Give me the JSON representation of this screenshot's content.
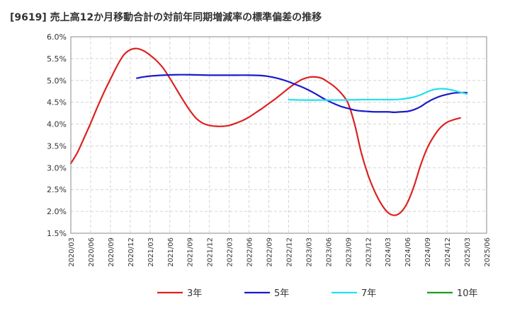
{
  "chart_data": {
    "type": "line",
    "title": "[9619]  売上高12か月移動合計の対前年同期増減率の標準偏差の推移",
    "xlabel": "",
    "ylabel": "",
    "ylim": [
      1.5,
      6.0
    ],
    "y_ticks": [
      "1.5%",
      "2.0%",
      "2.5%",
      "3.0%",
      "3.5%",
      "4.0%",
      "4.5%",
      "5.0%",
      "5.5%",
      "6.0%"
    ],
    "x_ticks": [
      "2020/03",
      "2020/06",
      "2020/09",
      "2020/12",
      "2021/03",
      "2021/06",
      "2021/09",
      "2021/12",
      "2022/03",
      "2022/06",
      "2022/09",
      "2022/12",
      "2023/03",
      "2023/06",
      "2023/09",
      "2023/12",
      "2024/03",
      "2024/06",
      "2024/09",
      "2024/12",
      "2025/03",
      "2025/06"
    ],
    "grid": true,
    "legend_position": "bottom",
    "series": [
      {
        "name": "3年",
        "color": "#dd2222",
        "points": [
          [
            "2020/03",
            3.1
          ],
          [
            "2020/04",
            3.35
          ],
          [
            "2020/05",
            3.68
          ],
          [
            "2020/06",
            4.02
          ],
          [
            "2020/07",
            4.38
          ],
          [
            "2020/08",
            4.72
          ],
          [
            "2020/09",
            5.03
          ],
          [
            "2020/10",
            5.33
          ],
          [
            "2020/11",
            5.58
          ],
          [
            "2020/12",
            5.7
          ],
          [
            "2021/01",
            5.73
          ],
          [
            "2021/02",
            5.68
          ],
          [
            "2021/03",
            5.58
          ],
          [
            "2021/04",
            5.45
          ],
          [
            "2021/05",
            5.28
          ],
          [
            "2021/06",
            5.05
          ],
          [
            "2021/07",
            4.8
          ],
          [
            "2021/08",
            4.55
          ],
          [
            "2021/09",
            4.32
          ],
          [
            "2021/10",
            4.13
          ],
          [
            "2021/11",
            4.02
          ],
          [
            "2021/12",
            3.97
          ],
          [
            "2022/01",
            3.95
          ],
          [
            "2022/02",
            3.95
          ],
          [
            "2022/03",
            3.97
          ],
          [
            "2022/04",
            4.02
          ],
          [
            "2022/05",
            4.08
          ],
          [
            "2022/06",
            4.16
          ],
          [
            "2022/07",
            4.26
          ],
          [
            "2022/08",
            4.36
          ],
          [
            "2022/09",
            4.47
          ],
          [
            "2022/10",
            4.58
          ],
          [
            "2022/11",
            4.7
          ],
          [
            "2022/12",
            4.82
          ],
          [
            "2023/01",
            4.93
          ],
          [
            "2023/02",
            5.02
          ],
          [
            "2023/03",
            5.07
          ],
          [
            "2023/04",
            5.08
          ],
          [
            "2023/05",
            5.05
          ],
          [
            "2023/06",
            4.96
          ],
          [
            "2023/07",
            4.85
          ],
          [
            "2023/08",
            4.7
          ],
          [
            "2023/09",
            4.48
          ],
          [
            "2023/10",
            4.0
          ],
          [
            "2023/11",
            3.35
          ],
          [
            "2023/12",
            2.85
          ],
          [
            "2024/01",
            2.47
          ],
          [
            "2024/02",
            2.18
          ],
          [
            "2024/03",
            1.98
          ],
          [
            "2024/04",
            1.91
          ],
          [
            "2024/05",
            1.98
          ],
          [
            "2024/06",
            2.2
          ],
          [
            "2024/07",
            2.58
          ],
          [
            "2024/08",
            3.06
          ],
          [
            "2024/09",
            3.45
          ],
          [
            "2024/10",
            3.72
          ],
          [
            "2024/11",
            3.92
          ],
          [
            "2024/12",
            4.04
          ],
          [
            "2025/01",
            4.1
          ],
          [
            "2025/02",
            4.14
          ]
        ]
      },
      {
        "name": "5年",
        "color": "#1a1acc",
        "points": [
          [
            "2021/01",
            5.05
          ],
          [
            "2021/02",
            5.08
          ],
          [
            "2021/03",
            5.1
          ],
          [
            "2021/05",
            5.12
          ],
          [
            "2021/07",
            5.13
          ],
          [
            "2021/09",
            5.13
          ],
          [
            "2021/12",
            5.12
          ],
          [
            "2022/03",
            5.12
          ],
          [
            "2022/06",
            5.12
          ],
          [
            "2022/08",
            5.11
          ],
          [
            "2022/09",
            5.09
          ],
          [
            "2022/10",
            5.06
          ],
          [
            "2022/11",
            5.02
          ],
          [
            "2022/12",
            4.97
          ],
          [
            "2023/01",
            4.91
          ],
          [
            "2023/02",
            4.85
          ],
          [
            "2023/03",
            4.78
          ],
          [
            "2023/04",
            4.7
          ],
          [
            "2023/05",
            4.61
          ],
          [
            "2023/06",
            4.53
          ],
          [
            "2023/07",
            4.46
          ],
          [
            "2023/08",
            4.4
          ],
          [
            "2023/09",
            4.36
          ],
          [
            "2023/10",
            4.32
          ],
          [
            "2023/11",
            4.3
          ],
          [
            "2023/12",
            4.29
          ],
          [
            "2024/01",
            4.28
          ],
          [
            "2024/03",
            4.28
          ],
          [
            "2024/04",
            4.27
          ],
          [
            "2024/05",
            4.28
          ],
          [
            "2024/06",
            4.29
          ],
          [
            "2024/07",
            4.33
          ],
          [
            "2024/08",
            4.4
          ],
          [
            "2024/09",
            4.5
          ],
          [
            "2024/10",
            4.58
          ],
          [
            "2024/11",
            4.64
          ],
          [
            "2024/12",
            4.68
          ],
          [
            "2025/01",
            4.71
          ],
          [
            "2025/02",
            4.72
          ],
          [
            "2025/03",
            4.72
          ]
        ]
      },
      {
        "name": "7年",
        "color": "#22e0ee",
        "points": [
          [
            "2022/12",
            4.56
          ],
          [
            "2023/02",
            4.55
          ],
          [
            "2023/05",
            4.55
          ],
          [
            "2023/08",
            4.55
          ],
          [
            "2023/11",
            4.56
          ],
          [
            "2024/02",
            4.56
          ],
          [
            "2024/04",
            4.56
          ],
          [
            "2024/05",
            4.57
          ],
          [
            "2024/06",
            4.59
          ],
          [
            "2024/07",
            4.62
          ],
          [
            "2024/08",
            4.67
          ],
          [
            "2024/09",
            4.74
          ],
          [
            "2024/10",
            4.79
          ],
          [
            "2024/11",
            4.81
          ],
          [
            "2024/12",
            4.8
          ],
          [
            "2025/01",
            4.77
          ],
          [
            "2025/02",
            4.73
          ],
          [
            "2025/03",
            4.69
          ]
        ]
      },
      {
        "name": "10年",
        "color": "#229922",
        "points": []
      }
    ]
  }
}
